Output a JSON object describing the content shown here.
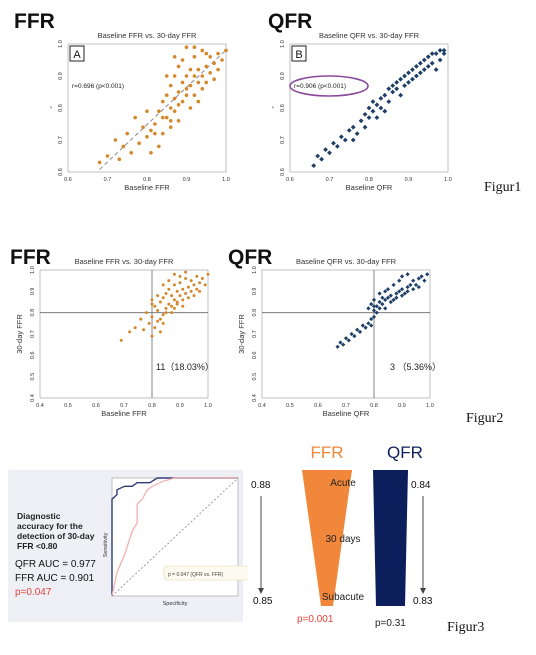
{
  "headings": {
    "fig1_left": "FFR",
    "fig1_right": "QFR",
    "fig2_left": "FFR",
    "fig2_right": "QFR"
  },
  "captions": {
    "fig1": "Figur1",
    "fig2": "Figur2",
    "fig3": "Figur3"
  },
  "chart_data": [
    {
      "type": "scatter",
      "panel_letter": "A",
      "title": "Baseline FFR vs. 30-day FFR",
      "xlabel": "Baseline FFR",
      "ylabel": "30-day FFR",
      "xlim": [
        0.6,
        1.0
      ],
      "ylim": [
        0.6,
        1.0
      ],
      "xticks": [
        "0.6",
        "0.7",
        "0.8",
        "0.9",
        "1.0"
      ],
      "yticks": [
        "0.6",
        "0.7",
        "0.8",
        "0.9",
        "1.0"
      ],
      "annotation": "r=0.696 (p<0.001)",
      "marker": "circle",
      "color": "#d4882b",
      "trendline": true,
      "points": [
        [
          0.68,
          0.63
        ],
        [
          0.7,
          0.65
        ],
        [
          0.72,
          0.7
        ],
        [
          0.74,
          0.68
        ],
        [
          0.75,
          0.72
        ],
        [
          0.76,
          0.66
        ],
        [
          0.78,
          0.69
        ],
        [
          0.79,
          0.74
        ],
        [
          0.8,
          0.71
        ],
        [
          0.81,
          0.66
        ],
        [
          0.81,
          0.73
        ],
        [
          0.82,
          0.75
        ],
        [
          0.83,
          0.79
        ],
        [
          0.83,
          0.68
        ],
        [
          0.84,
          0.72
        ],
        [
          0.84,
          0.82
        ],
        [
          0.85,
          0.77
        ],
        [
          0.85,
          0.84
        ],
        [
          0.86,
          0.74
        ],
        [
          0.86,
          0.8
        ],
        [
          0.86,
          0.87
        ],
        [
          0.87,
          0.79
        ],
        [
          0.87,
          0.83
        ],
        [
          0.87,
          0.9
        ],
        [
          0.88,
          0.85
        ],
        [
          0.88,
          0.93
        ],
        [
          0.88,
          0.76
        ],
        [
          0.89,
          0.82
        ],
        [
          0.89,
          0.88
        ],
        [
          0.89,
          0.95
        ],
        [
          0.9,
          0.84
        ],
        [
          0.9,
          0.9
        ],
        [
          0.9,
          0.86
        ],
        [
          0.91,
          0.92
        ],
        [
          0.91,
          0.8
        ],
        [
          0.91,
          0.87
        ],
        [
          0.92,
          0.9
        ],
        [
          0.92,
          0.84
        ],
        [
          0.92,
          0.96
        ],
        [
          0.93,
          0.88
        ],
        [
          0.93,
          0.92
        ],
        [
          0.93,
          0.82
        ],
        [
          0.94,
          0.9
        ],
        [
          0.94,
          0.86
        ],
        [
          0.95,
          0.93
        ],
        [
          0.95,
          0.88
        ],
        [
          0.96,
          0.91
        ],
        [
          0.96,
          0.96
        ],
        [
          0.97,
          0.94
        ],
        [
          0.97,
          0.89
        ],
        [
          0.98,
          0.97
        ],
        [
          0.98,
          0.92
        ],
        [
          0.99,
          0.95
        ],
        [
          1.0,
          0.98
        ],
        [
          0.85,
          0.9
        ],
        [
          0.87,
          0.96
        ],
        [
          0.9,
          0.99
        ],
        [
          0.92,
          0.99
        ],
        [
          0.94,
          0.98
        ],
        [
          0.95,
          0.97
        ],
        [
          0.84,
          0.77
        ],
        [
          0.82,
          0.72
        ],
        [
          0.8,
          0.79
        ],
        [
          0.77,
          0.77
        ],
        [
          0.73,
          0.64
        ],
        [
          0.86,
          0.76
        ],
        [
          0.88,
          0.81
        ]
      ]
    },
    {
      "type": "scatter",
      "panel_letter": "B",
      "title": "Baseline QFR vs. 30-day FFR",
      "xlabel": "Baseline QFR",
      "ylabel": "30-day FFR",
      "xlim": [
        0.6,
        1.0
      ],
      "ylim": [
        0.6,
        1.0
      ],
      "xticks": [
        "0.6",
        "0.7",
        "0.8",
        "0.9",
        "1.0"
      ],
      "yticks": [
        "0.6",
        "0.7",
        "0.8",
        "0.9",
        "1.0"
      ],
      "annotation": "r=0.906 (p<0.001)",
      "marker": "diamond",
      "color": "#1f3f66",
      "trendline": false,
      "points": [
        [
          0.66,
          0.62
        ],
        [
          0.67,
          0.65
        ],
        [
          0.68,
          0.64
        ],
        [
          0.69,
          0.67
        ],
        [
          0.7,
          0.66
        ],
        [
          0.71,
          0.69
        ],
        [
          0.72,
          0.68
        ],
        [
          0.73,
          0.71
        ],
        [
          0.74,
          0.7
        ],
        [
          0.75,
          0.73
        ],
        [
          0.76,
          0.74
        ],
        [
          0.77,
          0.72
        ],
        [
          0.78,
          0.76
        ],
        [
          0.79,
          0.78
        ],
        [
          0.8,
          0.77
        ],
        [
          0.8,
          0.8
        ],
        [
          0.81,
          0.79
        ],
        [
          0.81,
          0.82
        ],
        [
          0.82,
          0.81
        ],
        [
          0.83,
          0.83
        ],
        [
          0.83,
          0.8
        ],
        [
          0.84,
          0.84
        ],
        [
          0.85,
          0.82
        ],
        [
          0.85,
          0.86
        ],
        [
          0.86,
          0.85
        ],
        [
          0.86,
          0.87
        ],
        [
          0.87,
          0.86
        ],
        [
          0.87,
          0.88
        ],
        [
          0.88,
          0.84
        ],
        [
          0.88,
          0.89
        ],
        [
          0.89,
          0.87
        ],
        [
          0.89,
          0.9
        ],
        [
          0.9,
          0.88
        ],
        [
          0.9,
          0.91
        ],
        [
          0.91,
          0.89
        ],
        [
          0.91,
          0.92
        ],
        [
          0.92,
          0.9
        ],
        [
          0.92,
          0.93
        ],
        [
          0.93,
          0.91
        ],
        [
          0.93,
          0.94
        ],
        [
          0.94,
          0.92
        ],
        [
          0.94,
          0.95
        ],
        [
          0.95,
          0.93
        ],
        [
          0.95,
          0.96
        ],
        [
          0.96,
          0.94
        ],
        [
          0.96,
          0.97
        ],
        [
          0.97,
          0.92
        ],
        [
          0.97,
          0.97
        ],
        [
          0.98,
          0.98
        ],
        [
          0.98,
          0.95
        ],
        [
          0.99,
          0.98
        ],
        [
          0.99,
          0.97
        ],
        [
          0.84,
          0.79
        ],
        [
          0.82,
          0.77
        ],
        [
          0.79,
          0.74
        ],
        [
          0.76,
          0.7
        ]
      ]
    },
    {
      "type": "scatter",
      "title": "Baseline FFR vs. 30-day FFR",
      "xlabel": "Baseline FFR",
      "ylabel": "30-day FFR",
      "xlim": [
        0.4,
        1.0
      ],
      "ylim": [
        0.4,
        1.0
      ],
      "xticks": [
        "0.4",
        "0.5",
        "0.6",
        "0.7",
        "0.8",
        "0.9",
        "1.0"
      ],
      "yticks": [
        "0.4",
        "0.5",
        "0.6",
        "0.7",
        "0.8",
        "0.9",
        "1.0"
      ],
      "cutoff": 0.8,
      "annotation": "11（18.03%）",
      "marker": "circle",
      "color": "#d4882b",
      "points": [
        [
          0.69,
          0.67
        ],
        [
          0.72,
          0.71
        ],
        [
          0.74,
          0.73
        ],
        [
          0.76,
          0.77
        ],
        [
          0.77,
          0.72
        ],
        [
          0.78,
          0.8
        ],
        [
          0.79,
          0.75
        ],
        [
          0.8,
          0.78
        ],
        [
          0.8,
          0.69
        ],
        [
          0.81,
          0.73
        ],
        [
          0.81,
          0.83
        ],
        [
          0.82,
          0.76
        ],
        [
          0.82,
          0.81
        ],
        [
          0.83,
          0.85
        ],
        [
          0.83,
          0.71
        ],
        [
          0.84,
          0.79
        ],
        [
          0.84,
          0.87
        ],
        [
          0.85,
          0.82
        ],
        [
          0.85,
          0.89
        ],
        [
          0.86,
          0.84
        ],
        [
          0.86,
          0.91
        ],
        [
          0.87,
          0.83
        ],
        [
          0.87,
          0.88
        ],
        [
          0.88,
          0.86
        ],
        [
          0.88,
          0.93
        ],
        [
          0.89,
          0.85
        ],
        [
          0.89,
          0.9
        ],
        [
          0.9,
          0.88
        ],
        [
          0.9,
          0.94
        ],
        [
          0.91,
          0.86
        ],
        [
          0.91,
          0.91
        ],
        [
          0.92,
          0.89
        ],
        [
          0.92,
          0.96
        ],
        [
          0.93,
          0.92
        ],
        [
          0.93,
          0.87
        ],
        [
          0.94,
          0.9
        ],
        [
          0.94,
          0.95
        ],
        [
          0.95,
          0.93
        ],
        [
          0.96,
          0.91
        ],
        [
          0.96,
          0.97
        ],
        [
          0.97,
          0.94
        ],
        [
          0.98,
          0.96
        ],
        [
          0.99,
          0.93
        ],
        [
          1.0,
          0.98
        ],
        [
          0.84,
          0.93
        ],
        [
          0.86,
          0.95
        ],
        [
          0.88,
          0.98
        ],
        [
          0.9,
          0.97
        ],
        [
          0.92,
          0.99
        ],
        [
          0.8,
          0.86
        ],
        [
          0.83,
          0.77
        ],
        [
          0.85,
          0.8
        ],
        [
          0.87,
          0.8
        ],
        [
          0.88,
          0.82
        ],
        [
          0.89,
          0.84
        ],
        [
          0.91,
          0.83
        ],
        [
          0.95,
          0.88
        ],
        [
          0.97,
          0.9
        ],
        [
          0.8,
          0.84
        ],
        [
          0.82,
          0.88
        ],
        [
          0.84,
          0.75
        ]
      ]
    },
    {
      "type": "scatter",
      "title": "Baseline QFR vs. 30-day FFR",
      "xlabel": "Baseline QFR",
      "ylabel": "30-day FFR",
      "xlim": [
        0.4,
        1.0
      ],
      "ylim": [
        0.4,
        1.0
      ],
      "xticks": [
        "0.4",
        "0.5",
        "0.6",
        "0.7",
        "0.8",
        "0.9",
        "1.0"
      ],
      "yticks": [
        "0.4",
        "0.5",
        "0.6",
        "0.7",
        "0.8",
        "0.9",
        "1.0"
      ],
      "cutoff": 0.8,
      "annotation": "3 （5.36%）",
      "marker": "diamond",
      "color": "#1f3f66",
      "points": [
        [
          0.67,
          0.64
        ],
        [
          0.68,
          0.66
        ],
        [
          0.69,
          0.65
        ],
        [
          0.7,
          0.68
        ],
        [
          0.71,
          0.67
        ],
        [
          0.72,
          0.7
        ],
        [
          0.73,
          0.69
        ],
        [
          0.74,
          0.72
        ],
        [
          0.75,
          0.71
        ],
        [
          0.76,
          0.74
        ],
        [
          0.77,
          0.73
        ],
        [
          0.78,
          0.75
        ],
        [
          0.79,
          0.77
        ],
        [
          0.79,
          0.74
        ],
        [
          0.8,
          0.78
        ],
        [
          0.8,
          0.81
        ],
        [
          0.81,
          0.8
        ],
        [
          0.81,
          0.83
        ],
        [
          0.82,
          0.82
        ],
        [
          0.82,
          0.85
        ],
        [
          0.83,
          0.84
        ],
        [
          0.84,
          0.86
        ],
        [
          0.84,
          0.82
        ],
        [
          0.85,
          0.87
        ],
        [
          0.86,
          0.85
        ],
        [
          0.86,
          0.88
        ],
        [
          0.87,
          0.86
        ],
        [
          0.88,
          0.89
        ],
        [
          0.88,
          0.87
        ],
        [
          0.89,
          0.9
        ],
        [
          0.9,
          0.88
        ],
        [
          0.9,
          0.91
        ],
        [
          0.91,
          0.89
        ],
        [
          0.92,
          0.92
        ],
        [
          0.92,
          0.9
        ],
        [
          0.93,
          0.93
        ],
        [
          0.94,
          0.91
        ],
        [
          0.94,
          0.95
        ],
        [
          0.95,
          0.93
        ],
        [
          0.96,
          0.96
        ],
        [
          0.96,
          0.92
        ],
        [
          0.97,
          0.97
        ],
        [
          0.98,
          0.95
        ],
        [
          0.99,
          0.98
        ],
        [
          0.8,
          0.86
        ],
        [
          0.82,
          0.89
        ],
        [
          0.84,
          0.9
        ],
        [
          0.85,
          0.91
        ],
        [
          0.87,
          0.93
        ],
        [
          0.89,
          0.95
        ],
        [
          0.9,
          0.97
        ],
        [
          0.92,
          0.98
        ],
        [
          0.8,
          0.83
        ],
        [
          0.83,
          0.87
        ],
        [
          0.78,
          0.82
        ],
        [
          0.79,
          0.84
        ]
      ]
    },
    {
      "type": "line",
      "panel": "roc",
      "xlabel": "Specificity",
      "ylabel": "Sensitivity",
      "xlim": [
        0.5,
        1.0
      ],
      "ylim": [
        0.0,
        1.0
      ],
      "note": "p = 0.047 (QFR vs. FFR)",
      "series": [
        {
          "color": "#303a7a",
          "points": [
            [
              0.5,
              0.0
            ],
            [
              0.5,
              0.82
            ],
            [
              0.52,
              0.86
            ],
            [
              0.52,
              0.9
            ],
            [
              0.55,
              0.93
            ],
            [
              0.58,
              0.93
            ],
            [
              0.6,
              0.96
            ],
            [
              0.65,
              0.96
            ],
            [
              0.68,
              1.0
            ],
            [
              1.0,
              1.0
            ]
          ]
        },
        {
          "color": "#f2b5b5",
          "points": [
            [
              0.5,
              0.0
            ],
            [
              0.52,
              0.2
            ],
            [
              0.55,
              0.35
            ],
            [
              0.58,
              0.55
            ],
            [
              0.6,
              0.62
            ],
            [
              0.6,
              0.78
            ],
            [
              0.62,
              0.82
            ],
            [
              0.64,
              0.9
            ],
            [
              0.66,
              0.93
            ],
            [
              0.7,
              0.97
            ],
            [
              0.75,
              1.0
            ],
            [
              1.0,
              1.0
            ]
          ]
        },
        {
          "color": "#888888",
          "dashed": true,
          "points": [
            [
              0.5,
              0.0
            ],
            [
              1.0,
              1.0
            ]
          ]
        }
      ]
    },
    {
      "type": "funnel",
      "panel": "change-over-time",
      "stages": [
        "Acute",
        "30 days",
        "Subacute"
      ],
      "series": [
        {
          "name": "FFR",
          "start": 0.88,
          "end": 0.85,
          "p": "p=0.001",
          "color": "#f0873a",
          "p_color": "#e0423b"
        },
        {
          "name": "QFR",
          "start": 0.84,
          "end": 0.83,
          "p": "p=0.31",
          "color": "#0c1f5c",
          "p_color": "#222222"
        }
      ]
    }
  ],
  "roc_panel": {
    "title": "Diagnostic accuracy for the detection of 30-day FFR <0.80",
    "qfr_auc": "QFR AUC = 0.977",
    "ffr_auc": "FFR AUC = 0.901",
    "p": "p=0.047"
  }
}
